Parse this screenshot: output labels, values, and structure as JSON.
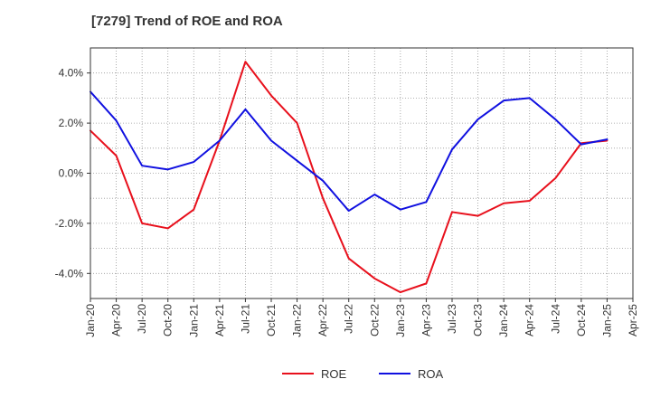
{
  "chart_data": {
    "type": "line",
    "title": "[7279]  Trend of ROE and ROA",
    "xlabel": "",
    "ylabel": "",
    "x": [
      "Jan-20",
      "Apr-20",
      "Jul-20",
      "Oct-20",
      "Jan-21",
      "Apr-21",
      "Jul-21",
      "Oct-21",
      "Jan-22",
      "Apr-22",
      "Jul-22",
      "Oct-22",
      "Jan-23",
      "Apr-23",
      "Jul-23",
      "Oct-23",
      "Jan-24",
      "Apr-24",
      "Jul-24",
      "Oct-24",
      "Jan-25",
      "Apr-25"
    ],
    "ylim": [
      -5.0,
      5.0
    ],
    "yticks": [
      4.0,
      2.0,
      0.0,
      -2.0,
      -4.0
    ],
    "ytick_labels": [
      "4.0%",
      "2.0%",
      "0.0%",
      "-2.0%",
      "-4.0%"
    ],
    "grid": true,
    "legend": "bottom",
    "series": [
      {
        "name": "ROE",
        "color": "#e8101c",
        "values": [
          1.7,
          0.7,
          -2.0,
          -2.2,
          -1.45,
          1.3,
          4.45,
          3.1,
          2.0,
          -1.0,
          -3.4,
          -4.2,
          -4.75,
          -4.4,
          -1.55,
          -1.7,
          -1.2,
          -1.1,
          -0.2,
          1.2,
          1.3,
          null
        ]
      },
      {
        "name": "ROA",
        "color": "#1010e0",
        "values": [
          3.25,
          2.1,
          0.3,
          0.15,
          0.45,
          1.3,
          2.55,
          1.3,
          0.5,
          -0.3,
          -1.5,
          -0.85,
          -1.45,
          -1.15,
          0.95,
          2.15,
          2.9,
          3.0,
          2.15,
          1.15,
          1.35,
          null
        ]
      }
    ]
  }
}
